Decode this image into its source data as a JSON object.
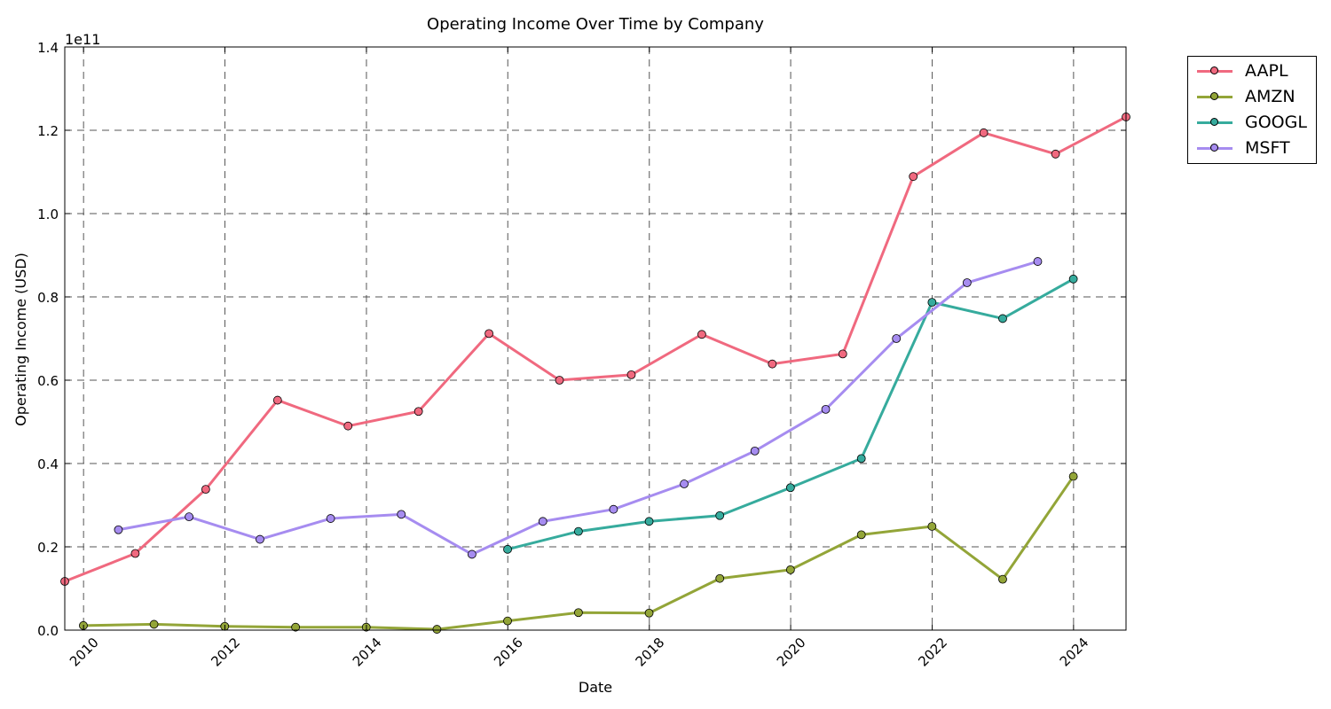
{
  "chart_data": {
    "type": "line",
    "title": "Operating Income Over Time by Company",
    "xlabel": "Date",
    "ylabel": "Operating Income (USD)",
    "y_scale_label": "1e11",
    "xlim": [
      "2009-09-26",
      "2024-09-28"
    ],
    "ylim": [
      0,
      140000000000.0
    ],
    "x_ticks": [
      "2010",
      "2012",
      "2014",
      "2016",
      "2018",
      "2020",
      "2022",
      "2024"
    ],
    "y_ticks": [
      "0.0",
      "0.2",
      "0.4",
      "0.6",
      "0.8",
      "1.0",
      "1.2",
      "1.4"
    ],
    "grid": true,
    "legend_position": "outside-top-right",
    "series": [
      {
        "name": "AAPL",
        "color": "#f0697f",
        "points": [
          [
            "2009-09-26",
            11700000000.0
          ],
          [
            "2010-09-25",
            18400000000.0
          ],
          [
            "2011-09-24",
            33800000000.0
          ],
          [
            "2012-09-29",
            55200000000.0
          ],
          [
            "2013-09-28",
            49000000000.0
          ],
          [
            "2014-09-27",
            52500000000.0
          ],
          [
            "2015-09-26",
            71200000000.0
          ],
          [
            "2016-09-24",
            60000000000.0
          ],
          [
            "2017-09-30",
            61300000000.0
          ],
          [
            "2018-09-29",
            71000000000.0
          ],
          [
            "2019-09-28",
            63900000000.0
          ],
          [
            "2020-09-26",
            66300000000.0
          ],
          [
            "2021-09-25",
            108900000000.0
          ],
          [
            "2022-09-24",
            119400000000.0
          ],
          [
            "2023-09-30",
            114300000000.0
          ],
          [
            "2024-09-28",
            123200000000.0
          ]
        ]
      },
      {
        "name": "AMZN",
        "color": "#93a538",
        "points": [
          [
            "2009-12-31",
            1100000000.0
          ],
          [
            "2010-12-31",
            1400000000.0
          ],
          [
            "2011-12-31",
            900000000.0
          ],
          [
            "2012-12-31",
            700000000.0
          ],
          [
            "2013-12-31",
            700000000.0
          ],
          [
            "2014-12-31",
            200000000.0
          ],
          [
            "2015-12-31",
            2200000000.0
          ],
          [
            "2016-12-31",
            4200000000.0
          ],
          [
            "2017-12-31",
            4100000000.0
          ],
          [
            "2018-12-31",
            12400000000.0
          ],
          [
            "2019-12-31",
            14500000000.0
          ],
          [
            "2020-12-31",
            22900000000.0
          ],
          [
            "2021-12-31",
            24900000000.0
          ],
          [
            "2022-12-31",
            12200000000.0
          ],
          [
            "2023-12-31",
            36900000000.0
          ]
        ]
      },
      {
        "name": "GOOGL",
        "color": "#36ab9d",
        "points": [
          [
            "2015-12-31",
            19400000000.0
          ],
          [
            "2016-12-31",
            23700000000.0
          ],
          [
            "2017-12-31",
            26100000000.0
          ],
          [
            "2018-12-31",
            27500000000.0
          ],
          [
            "2019-12-31",
            34200000000.0
          ],
          [
            "2020-12-31",
            41200000000.0
          ],
          [
            "2021-12-31",
            78700000000.0
          ],
          [
            "2022-12-31",
            74800000000.0
          ],
          [
            "2023-12-31",
            84300000000.0
          ]
        ]
      },
      {
        "name": "MSFT",
        "color": "#a68cf0",
        "points": [
          [
            "2010-06-30",
            24100000000.0
          ],
          [
            "2011-06-30",
            27200000000.0
          ],
          [
            "2012-06-30",
            21800000000.0
          ],
          [
            "2013-06-30",
            26800000000.0
          ],
          [
            "2014-06-30",
            27800000000.0
          ],
          [
            "2015-06-30",
            18200000000.0
          ],
          [
            "2016-06-30",
            26100000000.0
          ],
          [
            "2017-06-30",
            29000000000.0
          ],
          [
            "2018-06-30",
            35100000000.0
          ],
          [
            "2019-06-30",
            43000000000.0
          ],
          [
            "2020-06-30",
            53000000000.0
          ],
          [
            "2021-06-30",
            70000000000.0
          ],
          [
            "2022-06-30",
            83400000000.0
          ],
          [
            "2023-06-30",
            88500000000.0
          ]
        ]
      }
    ]
  }
}
